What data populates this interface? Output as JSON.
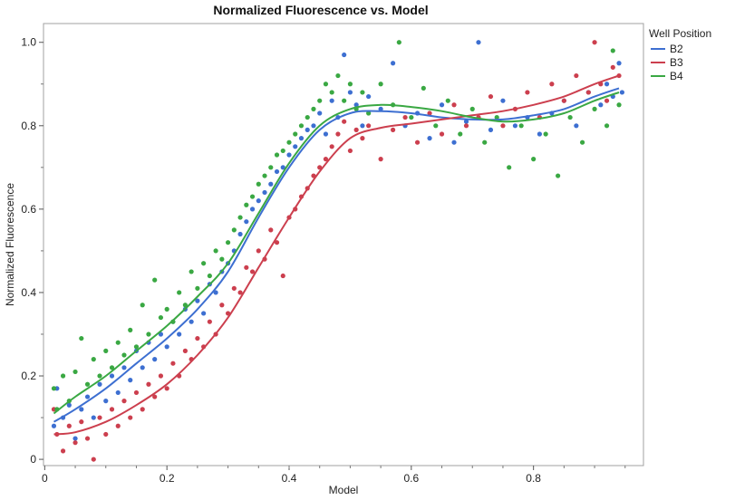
{
  "chart_data": {
    "type": "scatter",
    "title": "Normalized Fluorescence vs. Model",
    "xlabel": "Model",
    "ylabel": "Normalized Fluorescence",
    "xlim": [
      -0.002,
      0.98
    ],
    "ylim": [
      -0.015,
      1.045
    ],
    "xticks": [
      0,
      0.2,
      0.4,
      0.6,
      0.8
    ],
    "xtick_labels": [
      "0",
      "0.2",
      "0.4",
      "0.6",
      "0.8"
    ],
    "yticks": [
      0,
      0.2,
      0.4,
      0.6,
      0.8,
      1.0
    ],
    "ytick_labels": [
      "0",
      "0.2",
      "0.4",
      "0.6",
      "0.8",
      "1.0"
    ],
    "grid": false,
    "legend": {
      "title": "Well Position",
      "position": "right"
    },
    "series": [
      {
        "name": "B2",
        "color": "#3d6fd1",
        "fit_curve": [
          [
            0.015,
            0.09
          ],
          [
            0.05,
            0.12
          ],
          [
            0.1,
            0.17
          ],
          [
            0.15,
            0.23
          ],
          [
            0.2,
            0.29
          ],
          [
            0.25,
            0.36
          ],
          [
            0.3,
            0.45
          ],
          [
            0.35,
            0.58
          ],
          [
            0.4,
            0.7
          ],
          [
            0.45,
            0.79
          ],
          [
            0.5,
            0.83
          ],
          [
            0.55,
            0.835
          ],
          [
            0.6,
            0.83
          ],
          [
            0.65,
            0.82
          ],
          [
            0.7,
            0.815
          ],
          [
            0.75,
            0.815
          ],
          [
            0.8,
            0.825
          ],
          [
            0.85,
            0.84
          ],
          [
            0.9,
            0.87
          ],
          [
            0.94,
            0.89
          ]
        ],
        "points": [
          [
            0.015,
            0.08
          ],
          [
            0.02,
            0.17
          ],
          [
            0.03,
            0.1
          ],
          [
            0.04,
            0.13
          ],
          [
            0.05,
            0.05
          ],
          [
            0.06,
            0.12
          ],
          [
            0.07,
            0.15
          ],
          [
            0.08,
            0.1
          ],
          [
            0.09,
            0.18
          ],
          [
            0.1,
            0.14
          ],
          [
            0.11,
            0.2
          ],
          [
            0.12,
            0.16
          ],
          [
            0.13,
            0.22
          ],
          [
            0.14,
            0.19
          ],
          [
            0.15,
            0.26
          ],
          [
            0.16,
            0.22
          ],
          [
            0.17,
            0.28
          ],
          [
            0.18,
            0.24
          ],
          [
            0.19,
            0.3
          ],
          [
            0.2,
            0.27
          ],
          [
            0.21,
            0.33
          ],
          [
            0.22,
            0.3
          ],
          [
            0.23,
            0.36
          ],
          [
            0.24,
            0.33
          ],
          [
            0.25,
            0.38
          ],
          [
            0.26,
            0.35
          ],
          [
            0.27,
            0.42
          ],
          [
            0.28,
            0.4
          ],
          [
            0.29,
            0.45
          ],
          [
            0.3,
            0.47
          ],
          [
            0.31,
            0.5
          ],
          [
            0.32,
            0.54
          ],
          [
            0.33,
            0.57
          ],
          [
            0.34,
            0.6
          ],
          [
            0.35,
            0.62
          ],
          [
            0.36,
            0.64
          ],
          [
            0.37,
            0.66
          ],
          [
            0.38,
            0.69
          ],
          [
            0.39,
            0.7
          ],
          [
            0.4,
            0.73
          ],
          [
            0.41,
            0.75
          ],
          [
            0.42,
            0.77
          ],
          [
            0.43,
            0.79
          ],
          [
            0.44,
            0.8
          ],
          [
            0.45,
            0.83
          ],
          [
            0.46,
            0.78
          ],
          [
            0.47,
            0.86
          ],
          [
            0.48,
            0.82
          ],
          [
            0.49,
            0.97
          ],
          [
            0.5,
            0.88
          ],
          [
            0.51,
            0.85
          ],
          [
            0.52,
            0.8
          ],
          [
            0.53,
            0.87
          ],
          [
            0.55,
            0.84
          ],
          [
            0.57,
            0.95
          ],
          [
            0.59,
            0.8
          ],
          [
            0.61,
            0.83
          ],
          [
            0.63,
            0.77
          ],
          [
            0.65,
            0.85
          ],
          [
            0.67,
            0.76
          ],
          [
            0.69,
            0.81
          ],
          [
            0.71,
            1.0
          ],
          [
            0.73,
            0.79
          ],
          [
            0.75,
            0.86
          ],
          [
            0.77,
            0.8
          ],
          [
            0.79,
            0.82
          ],
          [
            0.81,
            0.78
          ],
          [
            0.83,
            0.83
          ],
          [
            0.85,
            0.86
          ],
          [
            0.87,
            0.8
          ],
          [
            0.89,
            0.88
          ],
          [
            0.91,
            0.85
          ],
          [
            0.92,
            0.9
          ],
          [
            0.93,
            0.87
          ],
          [
            0.94,
            0.95
          ],
          [
            0.945,
            0.88
          ]
        ]
      },
      {
        "name": "B3",
        "color": "#cc3f4e",
        "fit_curve": [
          [
            0.015,
            0.06
          ],
          [
            0.05,
            0.065
          ],
          [
            0.1,
            0.09
          ],
          [
            0.15,
            0.13
          ],
          [
            0.2,
            0.18
          ],
          [
            0.25,
            0.25
          ],
          [
            0.3,
            0.34
          ],
          [
            0.35,
            0.46
          ],
          [
            0.4,
            0.58
          ],
          [
            0.45,
            0.69
          ],
          [
            0.5,
            0.77
          ],
          [
            0.55,
            0.795
          ],
          [
            0.6,
            0.805
          ],
          [
            0.65,
            0.815
          ],
          [
            0.7,
            0.825
          ],
          [
            0.75,
            0.835
          ],
          [
            0.8,
            0.85
          ],
          [
            0.85,
            0.87
          ],
          [
            0.9,
            0.9
          ],
          [
            0.94,
            0.92
          ]
        ],
        "points": [
          [
            0.015,
            0.12
          ],
          [
            0.02,
            0.06
          ],
          [
            0.03,
            0.02
          ],
          [
            0.04,
            0.08
          ],
          [
            0.05,
            0.04
          ],
          [
            0.06,
            0.09
          ],
          [
            0.07,
            0.05
          ],
          [
            0.08,
            0.0
          ],
          [
            0.09,
            0.1
          ],
          [
            0.1,
            0.06
          ],
          [
            0.11,
            0.12
          ],
          [
            0.12,
            0.08
          ],
          [
            0.13,
            0.14
          ],
          [
            0.14,
            0.1
          ],
          [
            0.15,
            0.16
          ],
          [
            0.16,
            0.12
          ],
          [
            0.17,
            0.18
          ],
          [
            0.18,
            0.15
          ],
          [
            0.19,
            0.2
          ],
          [
            0.2,
            0.17
          ],
          [
            0.21,
            0.23
          ],
          [
            0.22,
            0.2
          ],
          [
            0.23,
            0.26
          ],
          [
            0.24,
            0.24
          ],
          [
            0.25,
            0.29
          ],
          [
            0.26,
            0.27
          ],
          [
            0.27,
            0.33
          ],
          [
            0.28,
            0.3
          ],
          [
            0.29,
            0.37
          ],
          [
            0.3,
            0.35
          ],
          [
            0.31,
            0.41
          ],
          [
            0.32,
            0.4
          ],
          [
            0.33,
            0.46
          ],
          [
            0.34,
            0.45
          ],
          [
            0.35,
            0.5
          ],
          [
            0.36,
            0.48
          ],
          [
            0.37,
            0.55
          ],
          [
            0.38,
            0.52
          ],
          [
            0.39,
            0.44
          ],
          [
            0.4,
            0.58
          ],
          [
            0.41,
            0.6
          ],
          [
            0.42,
            0.63
          ],
          [
            0.43,
            0.65
          ],
          [
            0.44,
            0.68
          ],
          [
            0.45,
            0.7
          ],
          [
            0.46,
            0.72
          ],
          [
            0.47,
            0.75
          ],
          [
            0.48,
            0.78
          ],
          [
            0.49,
            0.81
          ],
          [
            0.5,
            0.74
          ],
          [
            0.51,
            0.79
          ],
          [
            0.52,
            0.77
          ],
          [
            0.53,
            0.8
          ],
          [
            0.55,
            0.72
          ],
          [
            0.57,
            0.79
          ],
          [
            0.59,
            0.82
          ],
          [
            0.61,
            0.76
          ],
          [
            0.63,
            0.83
          ],
          [
            0.65,
            0.78
          ],
          [
            0.67,
            0.85
          ],
          [
            0.69,
            0.8
          ],
          [
            0.71,
            0.82
          ],
          [
            0.73,
            0.87
          ],
          [
            0.75,
            0.8
          ],
          [
            0.77,
            0.84
          ],
          [
            0.79,
            0.88
          ],
          [
            0.81,
            0.82
          ],
          [
            0.83,
            0.9
          ],
          [
            0.85,
            0.86
          ],
          [
            0.87,
            0.92
          ],
          [
            0.89,
            0.88
          ],
          [
            0.9,
            1.0
          ],
          [
            0.91,
            0.9
          ],
          [
            0.92,
            0.86
          ],
          [
            0.93,
            0.94
          ],
          [
            0.94,
            0.92
          ]
        ]
      },
      {
        "name": "B4",
        "color": "#3aa843",
        "fit_curve": [
          [
            0.015,
            0.11
          ],
          [
            0.05,
            0.15
          ],
          [
            0.1,
            0.2
          ],
          [
            0.15,
            0.26
          ],
          [
            0.2,
            0.32
          ],
          [
            0.25,
            0.39
          ],
          [
            0.3,
            0.47
          ],
          [
            0.35,
            0.59
          ],
          [
            0.4,
            0.71
          ],
          [
            0.45,
            0.8
          ],
          [
            0.5,
            0.84
          ],
          [
            0.55,
            0.85
          ],
          [
            0.6,
            0.845
          ],
          [
            0.65,
            0.835
          ],
          [
            0.7,
            0.82
          ],
          [
            0.75,
            0.81
          ],
          [
            0.8,
            0.815
          ],
          [
            0.85,
            0.83
          ],
          [
            0.9,
            0.86
          ],
          [
            0.94,
            0.88
          ]
        ],
        "points": [
          [
            0.015,
            0.17
          ],
          [
            0.02,
            0.12
          ],
          [
            0.03,
            0.2
          ],
          [
            0.04,
            0.14
          ],
          [
            0.05,
            0.21
          ],
          [
            0.06,
            0.29
          ],
          [
            0.07,
            0.18
          ],
          [
            0.08,
            0.24
          ],
          [
            0.09,
            0.2
          ],
          [
            0.1,
            0.26
          ],
          [
            0.11,
            0.22
          ],
          [
            0.12,
            0.28
          ],
          [
            0.13,
            0.25
          ],
          [
            0.14,
            0.31
          ],
          [
            0.15,
            0.27
          ],
          [
            0.16,
            0.37
          ],
          [
            0.17,
            0.3
          ],
          [
            0.18,
            0.43
          ],
          [
            0.19,
            0.34
          ],
          [
            0.2,
            0.36
          ],
          [
            0.21,
            0.33
          ],
          [
            0.22,
            0.4
          ],
          [
            0.23,
            0.37
          ],
          [
            0.24,
            0.45
          ],
          [
            0.25,
            0.41
          ],
          [
            0.26,
            0.47
          ],
          [
            0.27,
            0.44
          ],
          [
            0.28,
            0.5
          ],
          [
            0.29,
            0.48
          ],
          [
            0.3,
            0.52
          ],
          [
            0.31,
            0.55
          ],
          [
            0.32,
            0.58
          ],
          [
            0.33,
            0.61
          ],
          [
            0.34,
            0.63
          ],
          [
            0.35,
            0.66
          ],
          [
            0.36,
            0.68
          ],
          [
            0.37,
            0.7
          ],
          [
            0.38,
            0.73
          ],
          [
            0.39,
            0.74
          ],
          [
            0.4,
            0.76
          ],
          [
            0.41,
            0.78
          ],
          [
            0.42,
            0.8
          ],
          [
            0.43,
            0.82
          ],
          [
            0.44,
            0.84
          ],
          [
            0.45,
            0.86
          ],
          [
            0.46,
            0.9
          ],
          [
            0.47,
            0.88
          ],
          [
            0.48,
            0.92
          ],
          [
            0.49,
            0.86
          ],
          [
            0.5,
            0.9
          ],
          [
            0.51,
            0.84
          ],
          [
            0.52,
            0.88
          ],
          [
            0.53,
            0.83
          ],
          [
            0.55,
            0.9
          ],
          [
            0.57,
            0.85
          ],
          [
            0.58,
            1.0
          ],
          [
            0.6,
            0.82
          ],
          [
            0.62,
            0.89
          ],
          [
            0.64,
            0.8
          ],
          [
            0.66,
            0.86
          ],
          [
            0.68,
            0.78
          ],
          [
            0.7,
            0.84
          ],
          [
            0.72,
            0.76
          ],
          [
            0.74,
            0.82
          ],
          [
            0.76,
            0.7
          ],
          [
            0.78,
            0.8
          ],
          [
            0.8,
            0.72
          ],
          [
            0.82,
            0.78
          ],
          [
            0.84,
            0.68
          ],
          [
            0.86,
            0.82
          ],
          [
            0.88,
            0.76
          ],
          [
            0.9,
            0.84
          ],
          [
            0.92,
            0.8
          ],
          [
            0.93,
            0.98
          ],
          [
            0.94,
            0.85
          ]
        ]
      }
    ]
  }
}
